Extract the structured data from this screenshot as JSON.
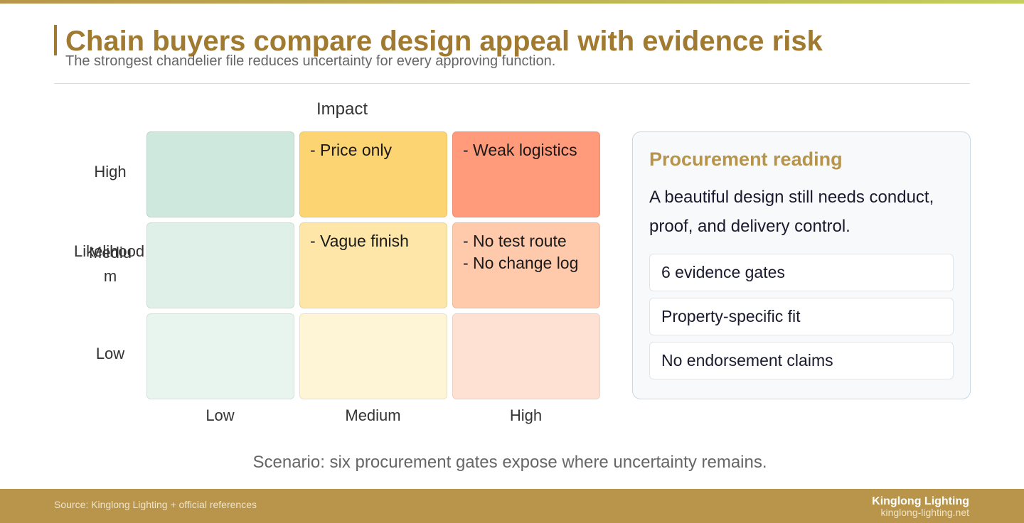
{
  "header": {
    "title": "Chain buyers compare design appeal with evidence risk",
    "subtitle": "The strongest chandelier file reduces uncertainty for every approving function."
  },
  "matrix": {
    "x_axis_label": "Impact",
    "y_axis_label": "Likelihood",
    "columns": [
      "Low",
      "Medium",
      "High"
    ],
    "rows": [
      "High",
      "Medium",
      "Low"
    ],
    "cells": [
      [
        [],
        [
          "- Price only"
        ],
        [
          "- Weak logistics"
        ]
      ],
      [
        [],
        [
          "- Vague finish"
        ],
        [
          "- No test route",
          "- No change log"
        ]
      ],
      [
        [],
        [],
        []
      ]
    ]
  },
  "panel": {
    "title": "Procurement reading",
    "body": "A beautiful design still needs conduct, proof, and delivery control.",
    "items": [
      "6 evidence gates",
      "Property-specific fit",
      "No endorsement claims"
    ]
  },
  "scenario": "Scenario: six procurement gates expose where uncertainty remains.",
  "footer": {
    "source": "Source: Kinglong Lighting + official references",
    "brand": "Kinglong Lighting",
    "url": "kinglong-lighting.net"
  }
}
